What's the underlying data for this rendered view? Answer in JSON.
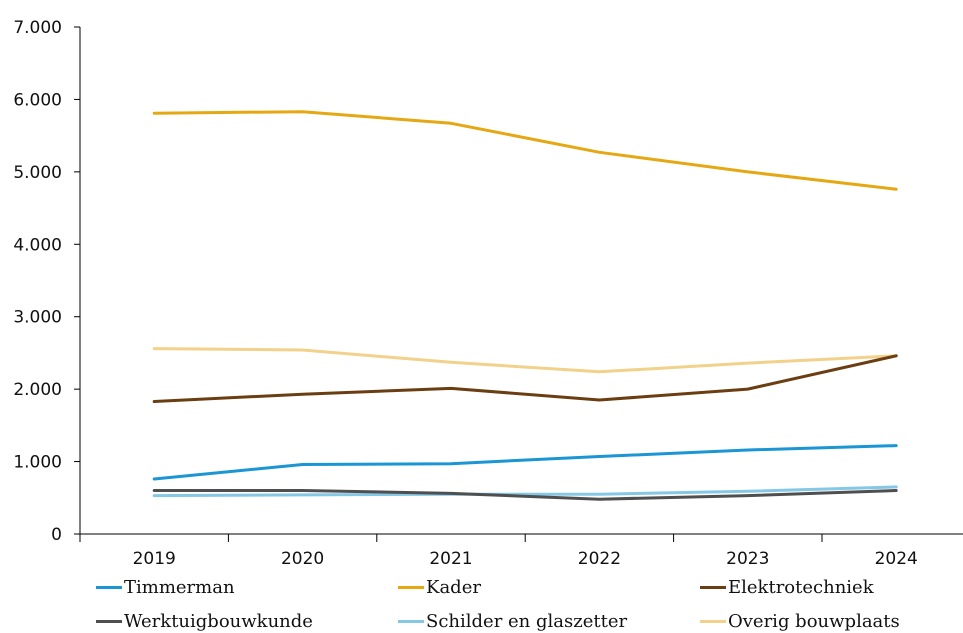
{
  "chart_data": {
    "type": "line",
    "x": [
      "2019",
      "2020",
      "2021",
      "2022",
      "2023",
      "2024"
    ],
    "ylim": [
      0,
      7000
    ],
    "yticks": [
      0,
      1000,
      2000,
      3000,
      4000,
      5000,
      6000,
      7000
    ],
    "ytick_labels": [
      "0",
      "1.000",
      "2.000",
      "3.000",
      "4.000",
      "5.000",
      "6.000",
      "7.000"
    ],
    "grid": false,
    "legend_position": "bottom",
    "series": [
      {
        "name": "Timmerman",
        "color": "#1a96d4",
        "values": [
          760,
          960,
          970,
          1070,
          1160,
          1220
        ]
      },
      {
        "name": "Kader",
        "color": "#e5a812",
        "values": [
          5810,
          5830,
          5670,
          5270,
          5000,
          4760
        ]
      },
      {
        "name": "Elektrotechniek",
        "color": "#6b3e12",
        "values": [
          1830,
          1930,
          2010,
          1850,
          2000,
          2460
        ]
      },
      {
        "name": "Werktuigbouwkunde",
        "color": "#4f4f4f",
        "values": [
          600,
          600,
          560,
          480,
          530,
          600
        ]
      },
      {
        "name": "Schilder en glaszetter",
        "color": "#85c8e6",
        "values": [
          530,
          540,
          550,
          550,
          590,
          650
        ]
      },
      {
        "name": "Overig bouwplaats",
        "color": "#f2d18a",
        "values": [
          2560,
          2540,
          2370,
          2240,
          2360,
          2460
        ]
      }
    ]
  }
}
